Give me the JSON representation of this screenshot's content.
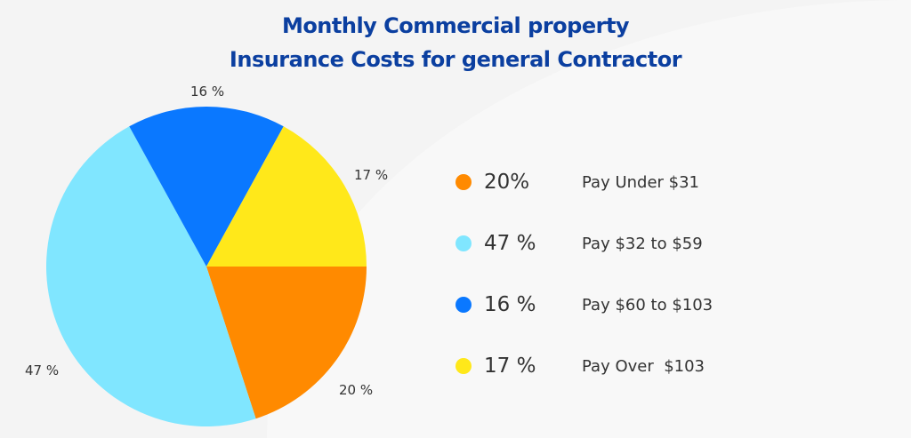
{
  "chart_data": {
    "type": "pie",
    "title": "Monthly Commercial property Insurance Costs for general Contractor",
    "title_lines": [
      "Monthly Commercial property",
      "Insurance Costs for general Contractor"
    ],
    "legend_placement": "right",
    "slices": [
      {
        "value": 20,
        "pie_label": "20 %",
        "legend_pct": "20%",
        "legend_text": "Pay Under $31",
        "color": "#FF8A00"
      },
      {
        "value": 47,
        "pie_label": "47 %",
        "legend_pct": "47 %",
        "legend_text": "Pay $32 to $59",
        "color": "#80E6FF"
      },
      {
        "value": 16,
        "pie_label": "16 %",
        "legend_pct": "16 %",
        "legend_text": "Pay $60 to $103",
        "color": "#0A78FF"
      },
      {
        "value": 17,
        "pie_label": "17 %",
        "legend_pct": "17 %",
        "legend_text": "Pay Over  $103",
        "color": "#FFE81A"
      }
    ]
  }
}
